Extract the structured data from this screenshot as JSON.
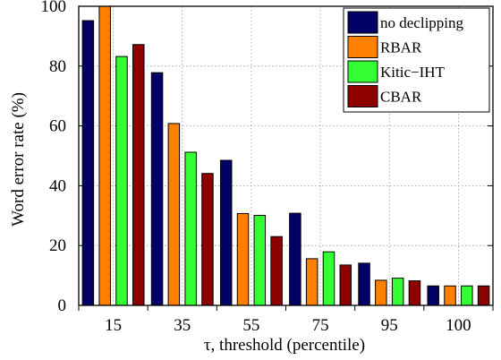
{
  "chart_data": {
    "type": "bar",
    "title": "",
    "xlabel": "τ, threshold (percentile)",
    "ylabel": "Word error rate (%)",
    "categories": [
      "15",
      "35",
      "55",
      "75",
      "95",
      "100"
    ],
    "ylim": [
      0,
      100
    ],
    "yticks": [
      0,
      20,
      40,
      60,
      80,
      100
    ],
    "grid": "dotted, horizontal and vertical",
    "legend_position": "top-right",
    "series": [
      {
        "name": "no declipping",
        "color": "#000066",
        "values": [
          95.2,
          77.8,
          48.5,
          30.8,
          14.1,
          6.5
        ]
      },
      {
        "name": "RBAR",
        "color": "#ff8000",
        "values": [
          102.2,
          60.8,
          30.7,
          15.6,
          8.4,
          6.5
        ]
      },
      {
        "name": "Kitic−IHT",
        "color": "#33ff33",
        "values": [
          83.2,
          51.2,
          30.1,
          17.9,
          9.1,
          6.5
        ]
      },
      {
        "name": "CBAR",
        "color": "#8c0000",
        "values": [
          87.2,
          44.1,
          23.0,
          13.5,
          8.2,
          6.5
        ]
      }
    ]
  }
}
